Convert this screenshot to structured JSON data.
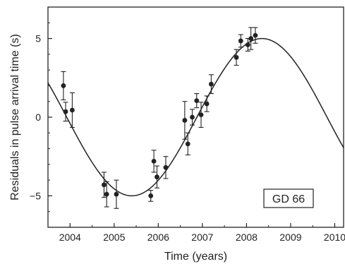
{
  "chart_data": {
    "type": "scatter",
    "title": "",
    "xlabel": "Time (years)",
    "ylabel": "Residuals in pulse arrival time (s)",
    "xlim": [
      2003.5,
      2010.2
    ],
    "ylim": [
      -7,
      7
    ],
    "x_ticks": [
      2004,
      2005,
      2006,
      2007,
      2008,
      2009,
      2010
    ],
    "y_ticks": [
      -5,
      0,
      5
    ],
    "annotation": "GD 66",
    "grid": false,
    "series": [
      {
        "type": "scatter-errorbar",
        "points": [
          {
            "x": 2003.85,
            "y": 2.0,
            "err": 0.9
          },
          {
            "x": 2003.9,
            "y": 0.35,
            "err": 0.6
          },
          {
            "x": 2004.05,
            "y": 0.45,
            "err": 1.1
          },
          {
            "x": 2004.77,
            "y": -4.3,
            "err": 0.8
          },
          {
            "x": 2004.83,
            "y": -4.9,
            "err": 0.8
          },
          {
            "x": 2005.05,
            "y": -4.9,
            "err": 0.9
          },
          {
            "x": 2005.83,
            "y": -5.0,
            "err": 0.35
          },
          {
            "x": 2005.9,
            "y": -2.8,
            "err": 0.7
          },
          {
            "x": 2005.97,
            "y": -3.8,
            "err": 0.7
          },
          {
            "x": 2006.17,
            "y": -3.2,
            "err": 0.7
          },
          {
            "x": 2006.6,
            "y": -0.2,
            "err": 1.2
          },
          {
            "x": 2006.67,
            "y": -1.7,
            "err": 0.7
          },
          {
            "x": 2006.77,
            "y": 0.0,
            "err": 0.5
          },
          {
            "x": 2006.87,
            "y": 1.05,
            "err": 0.45
          },
          {
            "x": 2006.97,
            "y": 0.15,
            "err": 0.8
          },
          {
            "x": 2007.1,
            "y": 0.85,
            "err": 0.5
          },
          {
            "x": 2007.2,
            "y": 2.1,
            "err": 0.6
          },
          {
            "x": 2007.77,
            "y": 3.8,
            "err": 0.5
          },
          {
            "x": 2007.87,
            "y": 4.85,
            "err": 0.4
          },
          {
            "x": 2008.03,
            "y": 4.6,
            "err": 0.4
          },
          {
            "x": 2008.1,
            "y": 5.0,
            "err": 0.7
          },
          {
            "x": 2008.2,
            "y": 5.2,
            "err": 0.5
          }
        ]
      },
      {
        "type": "line",
        "model": "sinusoid",
        "amplitude": 5.0,
        "offset": 0.0,
        "period_years": 5.9,
        "peak_year": 2008.35
      }
    ]
  }
}
